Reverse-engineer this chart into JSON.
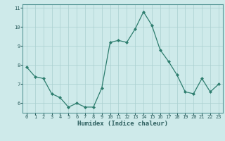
{
  "x": [
    0,
    1,
    2,
    3,
    4,
    5,
    6,
    7,
    8,
    9,
    10,
    11,
    12,
    13,
    14,
    15,
    16,
    17,
    18,
    19,
    20,
    21,
    22,
    23
  ],
  "y": [
    7.9,
    7.4,
    7.3,
    6.5,
    6.3,
    5.8,
    6.0,
    5.8,
    5.8,
    6.8,
    9.2,
    9.3,
    9.2,
    9.9,
    10.8,
    10.1,
    8.8,
    8.2,
    7.5,
    6.6,
    6.5,
    7.3,
    6.6,
    7.0
  ],
  "xlabel": "Humidex (Indice chaleur)",
  "bg_color": "#ceeaea",
  "line_color": "#2d7d6e",
  "marker_color": "#2d7d6e",
  "grid_color": "#aacfcf",
  "tick_label_color": "#2d5f5f",
  "xlabel_color": "#2d5f5f",
  "ylim": [
    5.5,
    11.2
  ],
  "xlim": [
    -0.5,
    23.5
  ],
  "yticks": [
    6,
    7,
    8,
    9,
    10,
    11
  ],
  "xticks": [
    0,
    1,
    2,
    3,
    4,
    5,
    6,
    7,
    8,
    9,
    10,
    11,
    12,
    13,
    14,
    15,
    16,
    17,
    18,
    19,
    20,
    21,
    22,
    23
  ],
  "spine_color": "#5a9999"
}
